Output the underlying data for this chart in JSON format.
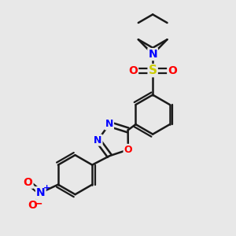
{
  "bg_color": "#e8e8e8",
  "bond_color": "#1a1a1a",
  "bond_width": 1.8,
  "atom_colors": {
    "N": "#0000ff",
    "O": "#ff0000",
    "S": "#cccc00",
    "C": "#1a1a1a"
  },
  "figsize": [
    3.0,
    3.0
  ],
  "dpi": 100,
  "xlim": [
    0,
    10
  ],
  "ylim": [
    0,
    10
  ]
}
